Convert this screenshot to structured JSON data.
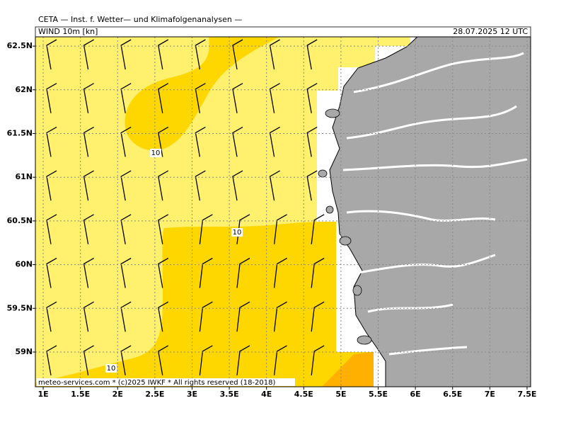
{
  "header": {
    "title": "CETA — Inst. f. Wetter— und Klimafolgenanalysen —",
    "product": "WIND 10m [kn]",
    "valid_time": "28.07.2025 12 UTC"
  },
  "map": {
    "xlim": [
      0.895,
      7.548
    ],
    "ylim": [
      58.603,
      62.606
    ],
    "xticks": [
      {
        "value": 1,
        "label": "1E"
      },
      {
        "value": 1.5,
        "label": "1.5E"
      },
      {
        "value": 2,
        "label": "2E"
      },
      {
        "value": 2.5,
        "label": "2.5E"
      },
      {
        "value": 3,
        "label": "3E"
      },
      {
        "value": 3.5,
        "label": "3.5E"
      },
      {
        "value": 4,
        "label": "4E"
      },
      {
        "value": 4.5,
        "label": "4.5E"
      },
      {
        "value": 5,
        "label": "5E"
      },
      {
        "value": 5.5,
        "label": "5.5E"
      },
      {
        "value": 6,
        "label": "6E"
      },
      {
        "value": 6.5,
        "label": "6.5E"
      },
      {
        "value": 7,
        "label": "7E"
      },
      {
        "value": 7.5,
        "label": "7.5E"
      }
    ],
    "yticks": [
      {
        "value": 59,
        "label": "59N"
      },
      {
        "value": 59.5,
        "label": "59.5N"
      },
      {
        "value": 60,
        "label": "60N"
      },
      {
        "value": 60.5,
        "label": "60.5N"
      },
      {
        "value": 61,
        "label": "61N"
      },
      {
        "value": 61.5,
        "label": "61.5N"
      },
      {
        "value": 62,
        "label": "62N"
      },
      {
        "value": 62.5,
        "label": "62.5N"
      }
    ],
    "contour_labels": [
      "10",
      "10",
      "10"
    ]
  },
  "footer": "meteo-services.com * (c)2025 IWKF * All rights reserved (18-2018)"
}
